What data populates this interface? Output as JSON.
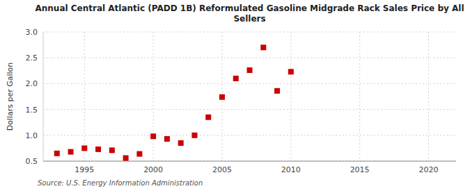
{
  "chart_data": {
    "type": "scatter",
    "title": "Annual Central Atlantic (PADD 1B) Reformulated Gasoline Midgrade Rack Sales Price by All\nSellers",
    "ylabel": "Dollars per Gallon",
    "source": "Source: U.S. Energy Information Administration",
    "x": [
      1993,
      1994,
      1995,
      1996,
      1997,
      1998,
      1999,
      2000,
      2001,
      2002,
      2003,
      2004,
      2005,
      2006,
      2007,
      2008,
      2009,
      2010
    ],
    "values": [
      0.65,
      0.68,
      0.75,
      0.73,
      0.71,
      0.56,
      0.64,
      0.98,
      0.93,
      0.85,
      1.0,
      1.35,
      1.74,
      2.1,
      2.26,
      2.7,
      1.86,
      2.23
    ],
    "color": "#cc0000",
    "marker": "square",
    "xlim": [
      1992,
      2022
    ],
    "ylim": [
      0.5,
      3.0
    ],
    "xticks": [
      1995,
      2000,
      2005,
      2010,
      2015,
      2020
    ],
    "yticks": [
      0.5,
      {
        "value": 1.0,
        "label": "1.0"
      },
      1.5,
      {
        "value": 2.0,
        "label": "2.0"
      },
      2.5,
      {
        "value": 3.0,
        "label": "3.0"
      }
    ],
    "grid": true
  }
}
